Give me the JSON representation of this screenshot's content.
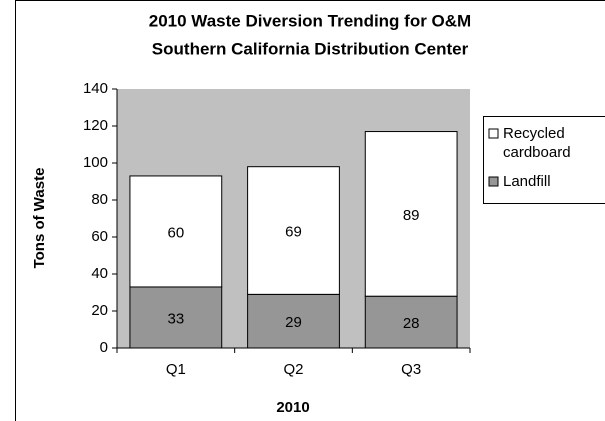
{
  "chart_data": {
    "type": "stacked_bar",
    "title_lines": [
      "2010 Waste Diversion Trending for O&M",
      "Southern California Distribution Center"
    ],
    "x_label": "2010",
    "y_label": "Tons of Waste",
    "categories": [
      "Q1",
      "Q2",
      "Q3"
    ],
    "series": [
      {
        "name": "Recycled cardboard",
        "color": "#ffffff",
        "values": [
          60,
          69,
          89
        ]
      },
      {
        "name": "Landfill",
        "color": "#969696",
        "values": [
          33,
          29,
          28
        ]
      }
    ],
    "ylim": [
      0,
      140
    ],
    "yticks": [
      0,
      20,
      40,
      60,
      80,
      100,
      120,
      140
    ],
    "legend": "right",
    "plot_background": "#c0c0c0"
  }
}
